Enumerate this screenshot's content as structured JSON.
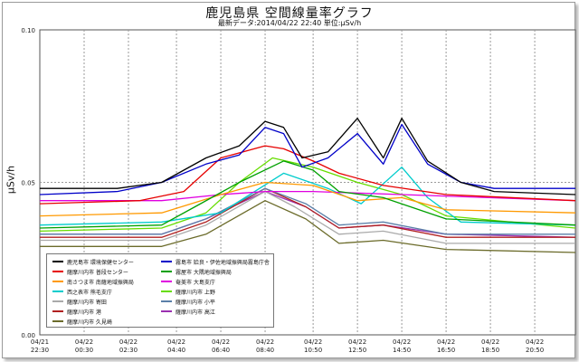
{
  "header": {
    "title": "鹿児島県 空間線量率グラフ",
    "subtitle": "最新データ:2014/04/22 22:40 単位:μSv/h"
  },
  "chart_data": {
    "type": "line",
    "ylabel": "μSv/h",
    "ylim": [
      0,
      0.1
    ],
    "yticks": [
      "0.00",
      "0.05",
      "0.10"
    ],
    "xlim": [
      "2014-04-21 22:30",
      "2014-04-22 22:40"
    ],
    "xticks": [
      {
        "t": "2014-04-21 22:30",
        "l1": "04/21",
        "l2": "22:30"
      },
      {
        "t": "2014-04-22 00:30",
        "l1": "04/22",
        "l2": "00:30"
      },
      {
        "t": "2014-04-22 02:30",
        "l1": "04/22",
        "l2": "02:30"
      },
      {
        "t": "2014-04-22 04:40",
        "l1": "04/22",
        "l2": "04:40"
      },
      {
        "t": "2014-04-22 06:40",
        "l1": "04/22",
        "l2": "06:40"
      },
      {
        "t": "2014-04-22 08:40",
        "l1": "04/22",
        "l2": "08:40"
      },
      {
        "t": "2014-04-22 10:50",
        "l1": "04/22",
        "l2": "10:50"
      },
      {
        "t": "2014-04-22 12:50",
        "l1": "04/22",
        "l2": "12:50"
      },
      {
        "t": "2014-04-22 14:50",
        "l1": "04/22",
        "l2": "14:50"
      },
      {
        "t": "2014-04-22 16:50",
        "l1": "04/22",
        "l2": "16:50"
      },
      {
        "t": "2014-04-22 18:50",
        "l1": "04/22",
        "l2": "18:50"
      },
      {
        "t": "2014-04-22 20:50",
        "l1": "04/22",
        "l2": "20:50"
      }
    ],
    "grid": true,
    "legend_position": "bottom-left",
    "series": [
      {
        "name": "鹿児島市 環境保健センター",
        "color": "#000000",
        "points": [
          [
            "2014-04-21 22:30",
            0.048
          ],
          [
            "2014-04-22 02:00",
            0.048
          ],
          [
            "2014-04-22 04:00",
            0.05
          ],
          [
            "2014-04-22 06:00",
            0.058
          ],
          [
            "2014-04-22 07:30",
            0.062
          ],
          [
            "2014-04-22 08:40",
            0.07
          ],
          [
            "2014-04-22 09:30",
            0.068
          ],
          [
            "2014-04-22 10:20",
            0.058
          ],
          [
            "2014-04-22 11:30",
            0.06
          ],
          [
            "2014-04-22 12:50",
            0.071
          ],
          [
            "2014-04-22 14:00",
            0.058
          ],
          [
            "2014-04-22 14:50",
            0.071
          ],
          [
            "2014-04-22 16:00",
            0.057
          ],
          [
            "2014-04-22 17:30",
            0.05
          ],
          [
            "2014-04-22 19:00",
            0.047
          ],
          [
            "2014-04-22 22:40",
            0.046
          ]
        ]
      },
      {
        "name": "霧島市 姶良・伊佐地域振興局霧島庁舎",
        "color": "#0000c8",
        "points": [
          [
            "2014-04-21 22:30",
            0.046
          ],
          [
            "2014-04-22 02:00",
            0.047
          ],
          [
            "2014-04-22 04:00",
            0.05
          ],
          [
            "2014-04-22 06:00",
            0.056
          ],
          [
            "2014-04-22 07:30",
            0.059
          ],
          [
            "2014-04-22 08:40",
            0.068
          ],
          [
            "2014-04-22 09:30",
            0.066
          ],
          [
            "2014-04-22 10:20",
            0.055
          ],
          [
            "2014-04-22 11:30",
            0.058
          ],
          [
            "2014-04-22 12:50",
            0.066
          ],
          [
            "2014-04-22 14:00",
            0.056
          ],
          [
            "2014-04-22 14:50",
            0.069
          ],
          [
            "2014-04-22 16:00",
            0.056
          ],
          [
            "2014-04-22 17:30",
            0.05
          ],
          [
            "2014-04-22 19:00",
            0.048
          ],
          [
            "2014-04-22 22:40",
            0.048
          ]
        ]
      },
      {
        "name": "薩摩川内市 普段センター",
        "color": "#e60000",
        "points": [
          [
            "2014-04-21 22:30",
            0.043
          ],
          [
            "2014-04-22 03:00",
            0.044
          ],
          [
            "2014-04-22 05:00",
            0.047
          ],
          [
            "2014-04-22 06:40",
            0.058
          ],
          [
            "2014-04-22 08:40",
            0.062
          ],
          [
            "2014-04-22 09:30",
            0.061
          ],
          [
            "2014-04-22 10:50",
            0.057
          ],
          [
            "2014-04-22 12:00",
            0.053
          ],
          [
            "2014-04-22 14:00",
            0.049
          ],
          [
            "2014-04-22 16:50",
            0.046
          ],
          [
            "2014-04-22 22:40",
            0.044
          ]
        ]
      },
      {
        "name": "霧屋市 大隅地域振興局",
        "color": "#00a000",
        "points": [
          [
            "2014-04-21 22:30",
            0.035
          ],
          [
            "2014-04-22 04:00",
            0.036
          ],
          [
            "2014-04-22 05:30",
            0.042
          ],
          [
            "2014-04-22 07:30",
            0.05
          ],
          [
            "2014-04-22 09:30",
            0.057
          ],
          [
            "2014-04-22 10:50",
            0.054
          ],
          [
            "2014-04-22 12:00",
            0.047
          ],
          [
            "2014-04-22 14:00",
            0.045
          ],
          [
            "2014-04-22 16:50",
            0.038
          ],
          [
            "2014-04-22 22:40",
            0.036
          ]
        ]
      },
      {
        "name": "南さつま市 南薩地域振興局",
        "color": "#ff9900",
        "points": [
          [
            "2014-04-21 22:30",
            0.039
          ],
          [
            "2014-04-22 04:00",
            0.04
          ],
          [
            "2014-04-22 06:40",
            0.046
          ],
          [
            "2014-04-22 08:40",
            0.05
          ],
          [
            "2014-04-22 10:50",
            0.049
          ],
          [
            "2014-04-22 12:50",
            0.044
          ],
          [
            "2014-04-22 14:50",
            0.045
          ],
          [
            "2014-04-22 16:50",
            0.041
          ],
          [
            "2014-04-22 22:40",
            0.04
          ]
        ]
      },
      {
        "name": "奄美市 大島支庁",
        "color": "#e000e0",
        "points": [
          [
            "2014-04-21 22:30",
            0.044
          ],
          [
            "2014-04-22 04:00",
            0.044
          ],
          [
            "2014-04-22 06:40",
            0.046
          ],
          [
            "2014-04-22 08:40",
            0.047
          ],
          [
            "2014-04-22 10:50",
            0.047
          ],
          [
            "2014-04-22 14:50",
            0.046
          ],
          [
            "2014-04-22 22:40",
            0.044
          ]
        ]
      },
      {
        "name": "西之表市 熊毛支庁",
        "color": "#00cccc",
        "points": [
          [
            "2014-04-21 22:30",
            0.036
          ],
          [
            "2014-04-22 04:00",
            0.037
          ],
          [
            "2014-04-22 06:40",
            0.04
          ],
          [
            "2014-04-22 09:30",
            0.053
          ],
          [
            "2014-04-22 11:30",
            0.048
          ],
          [
            "2014-04-22 13:00",
            0.043
          ],
          [
            "2014-04-22 14:50",
            0.055
          ],
          [
            "2014-04-22 16:00",
            0.045
          ],
          [
            "2014-04-22 17:30",
            0.037
          ],
          [
            "2014-04-22 22:40",
            0.036
          ]
        ]
      },
      {
        "name": "薩摩川内市 上野",
        "color": "#66dd00",
        "points": [
          [
            "2014-04-21 22:30",
            0.034
          ],
          [
            "2014-04-22 04:00",
            0.035
          ],
          [
            "2014-04-22 06:00",
            0.04
          ],
          [
            "2014-04-22 07:30",
            0.05
          ],
          [
            "2014-04-22 09:00",
            0.058
          ],
          [
            "2014-04-22 10:50",
            0.055
          ],
          [
            "2014-04-22 12:50",
            0.05
          ],
          [
            "2014-04-22 14:50",
            0.046
          ],
          [
            "2014-04-22 16:50",
            0.039
          ],
          [
            "2014-04-22 22:40",
            0.035
          ]
        ]
      },
      {
        "name": "薩摩川内市 寄田",
        "color": "#aaaaaa",
        "points": [
          [
            "2014-04-21 22:30",
            0.031
          ],
          [
            "2014-04-22 04:00",
            0.031
          ],
          [
            "2014-04-22 06:00",
            0.036
          ],
          [
            "2014-04-22 08:40",
            0.047
          ],
          [
            "2014-04-22 10:00",
            0.042
          ],
          [
            "2014-04-22 12:00",
            0.033
          ],
          [
            "2014-04-22 14:00",
            0.034
          ],
          [
            "2014-04-22 16:50",
            0.03
          ],
          [
            "2014-04-22 22:40",
            0.03
          ]
        ]
      },
      {
        "name": "薩摩川内市 小平",
        "color": "#5a7fa8",
        "points": [
          [
            "2014-04-21 22:30",
            0.033
          ],
          [
            "2014-04-22 04:00",
            0.033
          ],
          [
            "2014-04-22 06:00",
            0.038
          ],
          [
            "2014-04-22 08:40",
            0.048
          ],
          [
            "2014-04-22 10:30",
            0.043
          ],
          [
            "2014-04-22 12:00",
            0.036
          ],
          [
            "2014-04-22 14:00",
            0.037
          ],
          [
            "2014-04-22 16:50",
            0.033
          ],
          [
            "2014-04-22 22:40",
            0.033
          ]
        ]
      },
      {
        "name": "薩摩川内市 港",
        "color": "#b02020",
        "points": [
          [
            "2014-04-21 22:30",
            0.032
          ],
          [
            "2014-04-22 04:00",
            0.032
          ],
          [
            "2014-04-22 06:00",
            0.037
          ],
          [
            "2014-04-22 08:40",
            0.048
          ],
          [
            "2014-04-22 10:30",
            0.042
          ],
          [
            "2014-04-22 12:00",
            0.035
          ],
          [
            "2014-04-22 14:00",
            0.036
          ],
          [
            "2014-04-22 16:50",
            0.032
          ],
          [
            "2014-04-22 22:40",
            0.032
          ]
        ]
      },
      {
        "name": "薩摩川内市 高江",
        "color": "#9b30b0",
        "points": [
          [
            "2014-04-21 22:30",
            0.033
          ],
          [
            "2014-04-22 04:00",
            0.033
          ],
          [
            "2014-04-22 06:00",
            0.038
          ],
          [
            "2014-04-22 08:40",
            0.047
          ],
          [
            "2014-04-22 10:30",
            0.042
          ],
          [
            "2014-04-22 12:00",
            0.035
          ],
          [
            "2014-04-22 14:00",
            0.036
          ],
          [
            "2014-04-22 16:50",
            0.033
          ],
          [
            "2014-04-22 22:40",
            0.032
          ]
        ]
      },
      {
        "name": "薩摩川内市 久見崎",
        "color": "#6b6b2a",
        "points": [
          [
            "2014-04-21 22:30",
            0.029
          ],
          [
            "2014-04-22 04:00",
            0.029
          ],
          [
            "2014-04-22 06:00",
            0.033
          ],
          [
            "2014-04-22 08:40",
            0.044
          ],
          [
            "2014-04-22 10:30",
            0.038
          ],
          [
            "2014-04-22 12:00",
            0.03
          ],
          [
            "2014-04-22 14:00",
            0.031
          ],
          [
            "2014-04-22 16:50",
            0.028
          ],
          [
            "2014-04-22 22:40",
            0.027
          ]
        ]
      }
    ]
  },
  "legend": {
    "left": [
      {
        "label": "鹿児島市 環境保健センター",
        "color": "#000000"
      },
      {
        "label": "薩摩川内市 普段センター",
        "color": "#e60000"
      },
      {
        "label": "南さつま市 南薩地域振興局",
        "color": "#ff9900"
      },
      {
        "label": "西之表市 熊毛支庁",
        "color": "#00cccc"
      },
      {
        "label": "薩摩川内市 寄田",
        "color": "#aaaaaa"
      },
      {
        "label": "薩摩川内市 港",
        "color": "#b02020"
      },
      {
        "label": "薩摩川内市 久見崎",
        "color": "#6b6b2a"
      }
    ],
    "right": [
      {
        "label": "霧島市 姶良・伊佐地域振興局霧島庁舎",
        "color": "#0000c8"
      },
      {
        "label": "霧屋市 大隅地域振興局",
        "color": "#00a000"
      },
      {
        "label": "奄美市 大島支庁",
        "color": "#e000e0"
      },
      {
        "label": "薩摩川内市 上野",
        "color": "#66dd00"
      },
      {
        "label": "薩摩川内市 小平",
        "color": "#5a7fa8"
      },
      {
        "label": "薩摩川内市 高江",
        "color": "#9b30b0"
      }
    ]
  }
}
